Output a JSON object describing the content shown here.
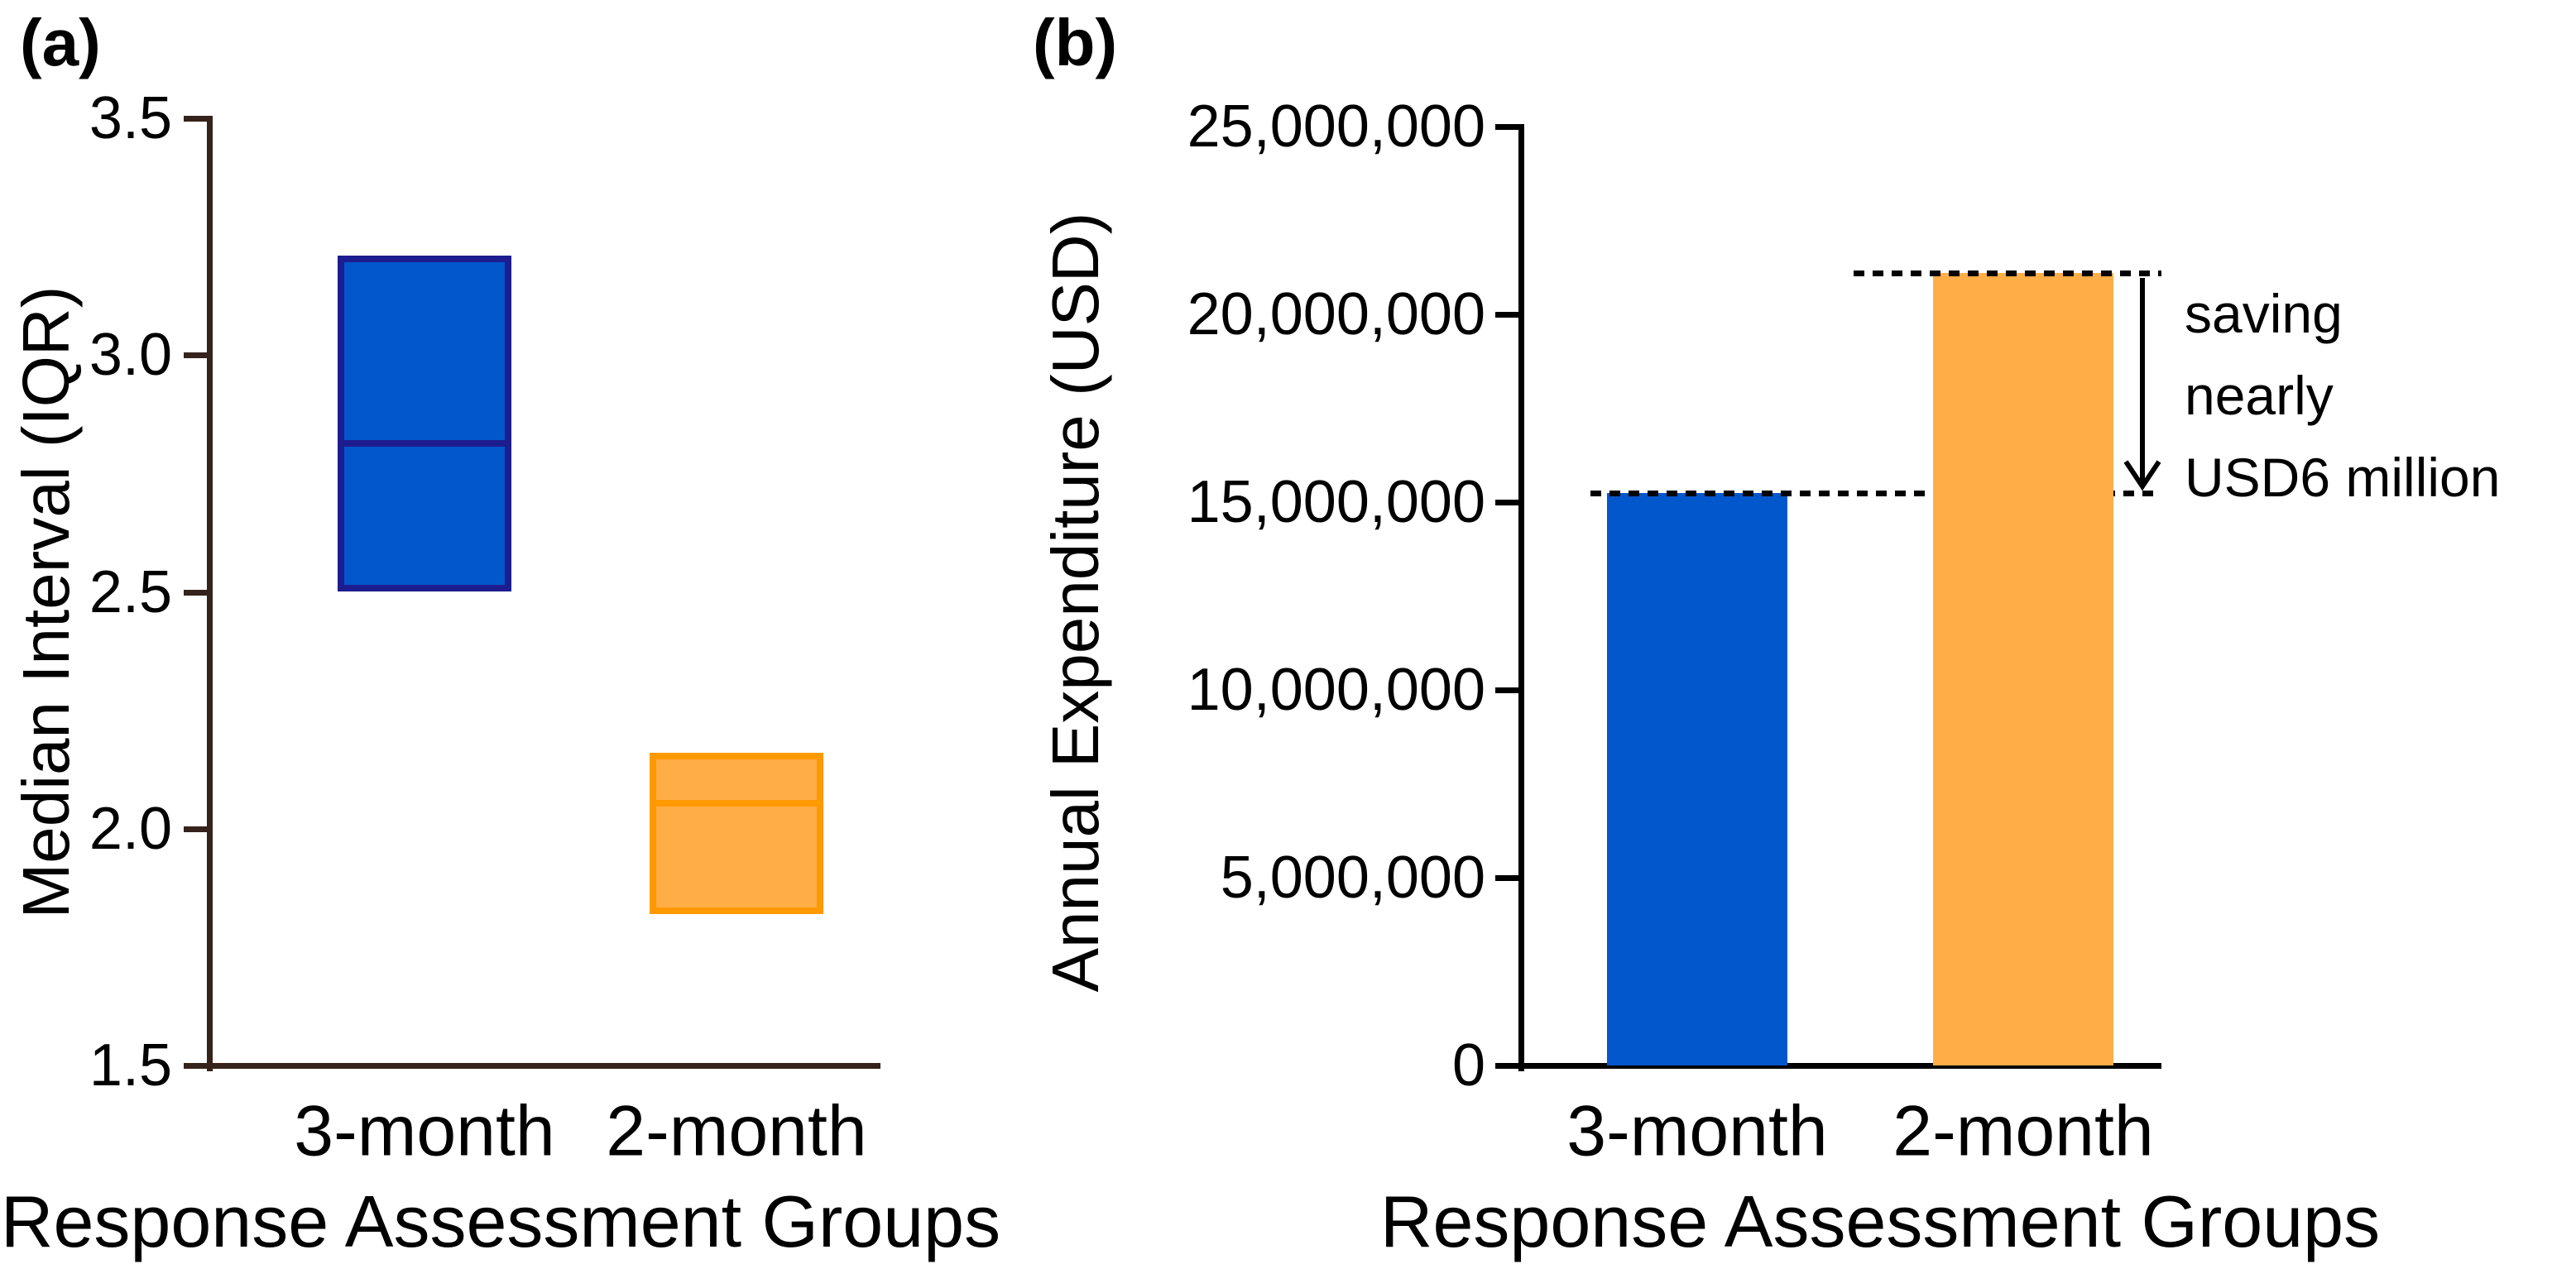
{
  "chart_data": [
    {
      "type": "box",
      "panel_label": "(a)",
      "title": "",
      "xlabel": "Response Assessment Groups",
      "ylabel": "Median Interval (IQR)",
      "categories": [
        "3-month",
        "2-month"
      ],
      "ylim": [
        1.5,
        3.5
      ],
      "yticks": [
        3.5,
        3.0,
        2.5,
        2.0,
        1.5
      ],
      "ytick_labels": [
        "3.5",
        "3.0",
        "2.5",
        "2.0",
        "1.5"
      ],
      "grid": false,
      "legend": "none",
      "boxes": [
        {
          "category": "3-month",
          "q1": 2.5,
          "median": 2.82,
          "q3": 3.21,
          "fill_color": "#0357CD",
          "edge_color": "#1D1D8F"
        },
        {
          "category": "2-month",
          "q1": 1.82,
          "median": 2.06,
          "q3": 2.16,
          "fill_color": "#FFAD47",
          "edge_color": "#FF9900"
        }
      ]
    },
    {
      "type": "bar",
      "panel_label": "(b)",
      "title": "",
      "xlabel": "Response Assessment Groups",
      "ylabel": "Annual Expenditure (USD)",
      "categories": [
        "3-month",
        "2-month"
      ],
      "values": [
        15250000,
        21100000
      ],
      "bar_colors": [
        "#0357CD",
        "#FFAD47"
      ],
      "ylim": [
        0,
        25000000
      ],
      "yticks": [
        25000000,
        20000000,
        15000000,
        10000000,
        5000000,
        0
      ],
      "ytick_labels": [
        "25,000,000",
        "20,000,000",
        "15,000,000",
        "10,000,000",
        "5,000,000",
        "0"
      ],
      "grid": false,
      "legend": "none",
      "annotation": {
        "lines": [
          "saving",
          "nearly",
          "USD6 million"
        ],
        "text": "saving nearly USD6 million",
        "difference_usd": 5850000
      }
    }
  ],
  "colors": {
    "background": "#FFFFFF",
    "blue_fill": "#0357CD",
    "blue_edge": "#1D1D8F",
    "orange_fill": "#FFAD47",
    "orange_edge": "#FF9900",
    "axis_panel_a": "#35221A",
    "axis_panel_b": "#000000",
    "text": "#000000",
    "dotted_line": "#000000"
  }
}
